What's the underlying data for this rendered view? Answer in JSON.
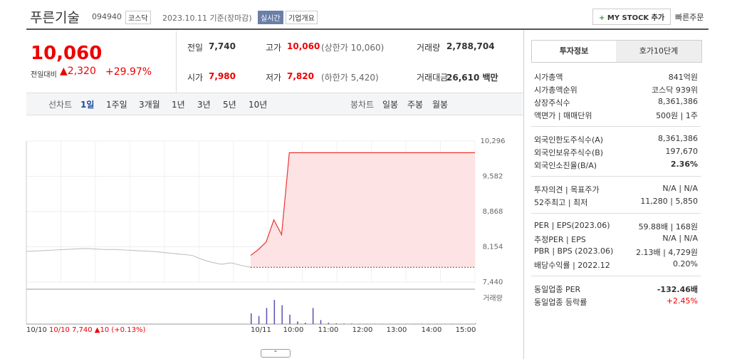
{
  "header": {
    "name": "푸른기술",
    "code": "094940",
    "market": "코스닥",
    "date": "2023.10.11 기준(장마감)",
    "realtime": "실시간",
    "company": "기업개요",
    "mystock": "MY STOCK 추가",
    "quick": "빠른주문"
  },
  "price": {
    "now": "10,060",
    "change_label": "전일대비",
    "change": "2,320",
    "rate": "+29.97%"
  },
  "summary": [
    {
      "label": "전일",
      "value": "7,740"
    },
    {
      "label": "고가",
      "value": "10,060",
      "note": "(상한가 10,060)"
    },
    {
      "label": "거래량",
      "value": "2,788,704"
    },
    {
      "label": "시가",
      "value": "7,980"
    },
    {
      "label": "저가",
      "value": "7,820",
      "note": "(하한가 5,420)"
    },
    {
      "label": "거래대금",
      "value": "26,610 백만"
    }
  ],
  "tabs": {
    "line_label": "선차트",
    "line": [
      "1일",
      "1주일",
      "3개월",
      "1년",
      "3년",
      "5년",
      "10년"
    ],
    "candle_label": "봉차트",
    "candle": [
      "일봉",
      "주봉",
      "월봉"
    ]
  },
  "chart": {
    "ylim": [
      7440,
      10296
    ],
    "yticks": [
      {
        "value": 10296,
        "label": "10,296"
      },
      {
        "value": 9582,
        "label": "9,582"
      },
      {
        "value": 8868,
        "label": "8,868"
      },
      {
        "value": 8154,
        "label": "8,154"
      },
      {
        "value": 7440,
        "label": "7,440"
      }
    ],
    "xlabels": [
      "10/10",
      "10/11",
      "10:00",
      "11:00",
      "12:00",
      "13:00",
      "14:00",
      "15:00"
    ],
    "prev_close": 7740,
    "prev_day": [
      8060,
      8070,
      8080,
      8090,
      8100,
      8110,
      8120,
      8110,
      8100,
      8100,
      8090,
      8080,
      8070,
      8060,
      8040,
      8020,
      8000,
      7980,
      7900,
      7840,
      7800,
      7830,
      7780,
      7740
    ],
    "today": [
      7980,
      8100,
      8250,
      8700,
      8400,
      10060,
      10060,
      10060,
      10060,
      10060,
      10060,
      10060,
      10060,
      10060,
      10060,
      10060,
      10060,
      10060,
      10060,
      10060,
      10060,
      10060,
      10060,
      10060,
      10060,
      10060,
      10060,
      10060,
      10060,
      10060
    ],
    "volume": [
      40,
      30,
      60,
      90,
      70,
      35,
      10,
      5,
      60,
      15,
      5,
      3,
      2,
      2,
      1,
      1,
      1,
      1,
      1,
      1,
      1,
      1,
      1,
      1,
      1,
      1,
      1,
      1,
      1,
      2
    ],
    "volume_label": "거래량",
    "prev_info": "10/10  7,740 ▲10 (+0.13%)"
  },
  "panel": {
    "tabs": [
      "투자정보",
      "호가10단계"
    ],
    "groups": [
      [
        {
          "label": "시가총액",
          "value": "841억원"
        },
        {
          "label": "시가총액순위",
          "value": "코스닥 939위"
        },
        {
          "label": "상장주식수",
          "value": "8,361,386"
        },
        {
          "label": "액면가 | 매매단위",
          "value": "500원 | 1주"
        }
      ],
      [
        {
          "label": "외국인한도주식수(A)",
          "value": "8,361,386"
        },
        {
          "label": "외국인보유주식수(B)",
          "value": "197,670"
        },
        {
          "label": "외국인소진율(B/A)",
          "value": "2.36%"
        }
      ],
      [
        {
          "label": "투자의견 | 목표주가",
          "value": "N/A | N/A"
        },
        {
          "label": "52주최고 | 최저",
          "value": "11,280 | 5,850"
        }
      ],
      [
        {
          "label": "PER | EPS(2023.06)",
          "value": "59.88배 | 168원"
        },
        {
          "label": "추정PER | EPS",
          "value": "N/A | N/A"
        },
        {
          "label": "PBR | BPS (2023.06)",
          "value": "2.13배 | 4,729원"
        },
        {
          "label": "배당수익률 | 2022.12",
          "value": "0.20%"
        }
      ],
      [
        {
          "label": "동일업종 PER",
          "value": "-132.46배"
        },
        {
          "label": "동일업종 등락률",
          "value": "+2.45%"
        }
      ]
    ]
  }
}
